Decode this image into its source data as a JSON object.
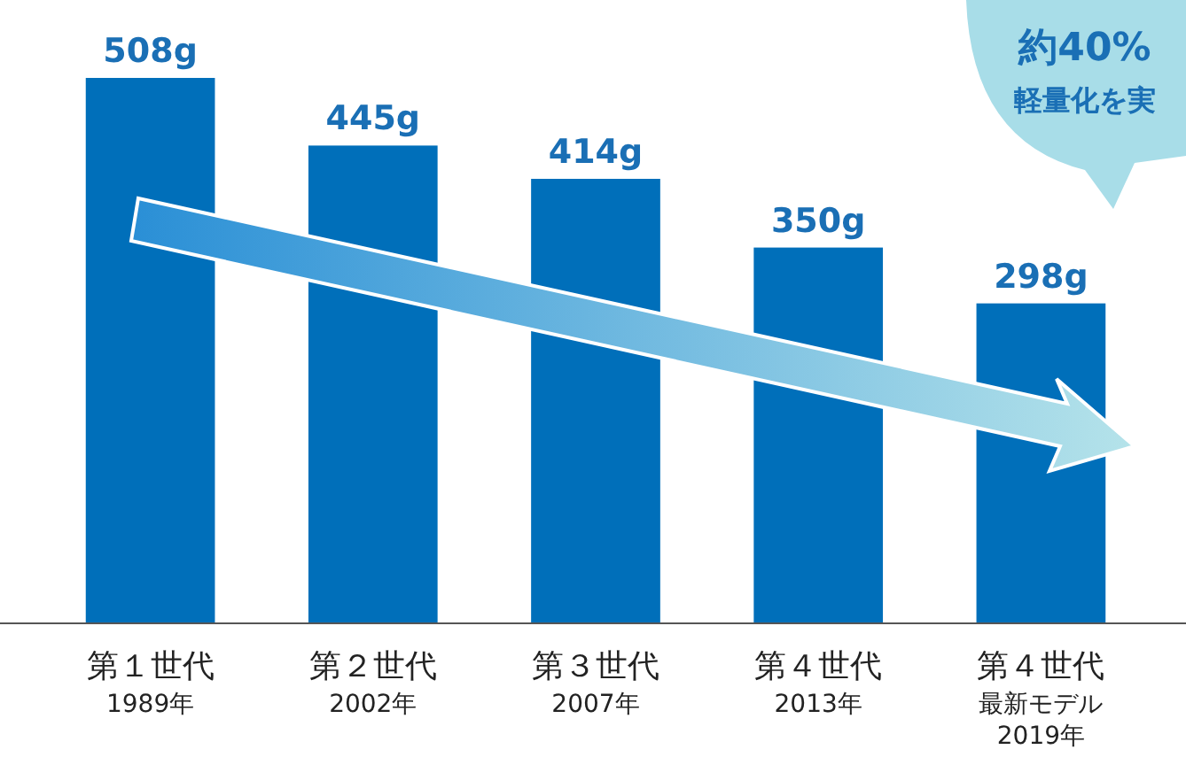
{
  "chart_data": {
    "type": "bar",
    "categories": [
      "第１世代\n1989年",
      "第２世代\n2002年",
      "第３世代\n2007年",
      "第４世代\n2013年",
      "第４世代最新モデル\n2019年"
    ],
    "values": [
      508,
      445,
      414,
      350,
      298
    ],
    "value_labels": [
      "508g",
      "445g",
      "414g",
      "350g",
      "298g"
    ],
    "color": "#006fba",
    "annotations": [
      "約40%",
      "軽量化を実"
    ]
  }
}
